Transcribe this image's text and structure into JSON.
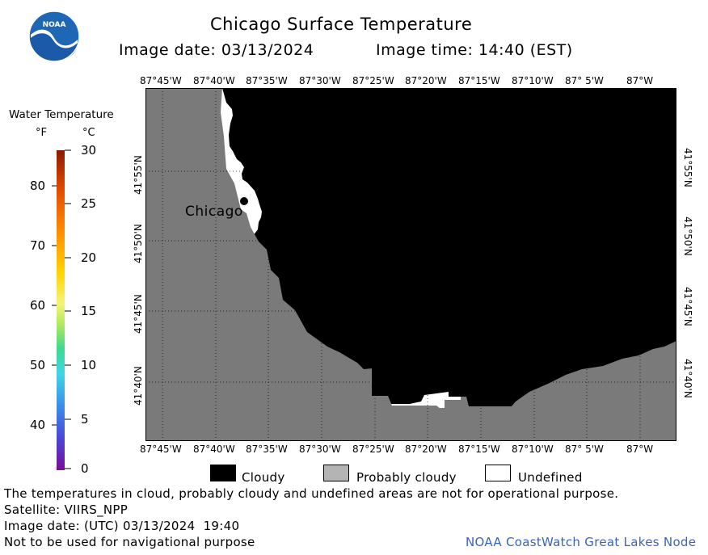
{
  "header": {
    "title": "Chicago Surface Temperature",
    "image_date": "Image date: 03/13/2024",
    "image_time": "Image time: 14:40 (EST)"
  },
  "logo": {
    "text": "NOAA"
  },
  "map": {
    "city_label": "Chicago",
    "lon_labels": [
      "87°45'W",
      "87°40'W",
      "87°35'W",
      "87°30'W",
      "87°25'W",
      "87°20'W",
      "87°15'W",
      "87°10'W",
      "87° 5'W",
      "87°W"
    ],
    "lat_labels": [
      "41°55'N",
      "41°50'N",
      "41°45'N",
      "41°40'N"
    ],
    "colors": {
      "land": "#7a7a7a",
      "cloudy": "#000000",
      "undefined": "#ffffff",
      "probably_cloudy": "#b4b4b4"
    }
  },
  "colorbar": {
    "title": "Water Temperature",
    "unit_f": "°F",
    "unit_c": "°C",
    "f_ticks": [
      "80",
      "70",
      "60",
      "50",
      "40"
    ],
    "c_ticks": [
      "30",
      "25",
      "20",
      "15",
      "10",
      "5",
      "0"
    ]
  },
  "legend": {
    "cloudy": "Cloudy",
    "probably_cloudy": "Probably cloudy",
    "undefined": "Undefined"
  },
  "footer": {
    "disclaimer": "The temperatures in cloud, probably cloudy and undefined areas are not for operational purpose.",
    "satellite": "Satellite: VIIRS_NPP",
    "utc_date": "Image date: (UTC) 03/13/2024  19:40",
    "nav_warning": "Not to be used for navigational purpose",
    "credit": "NOAA CoastWatch Great Lakes Node"
  }
}
